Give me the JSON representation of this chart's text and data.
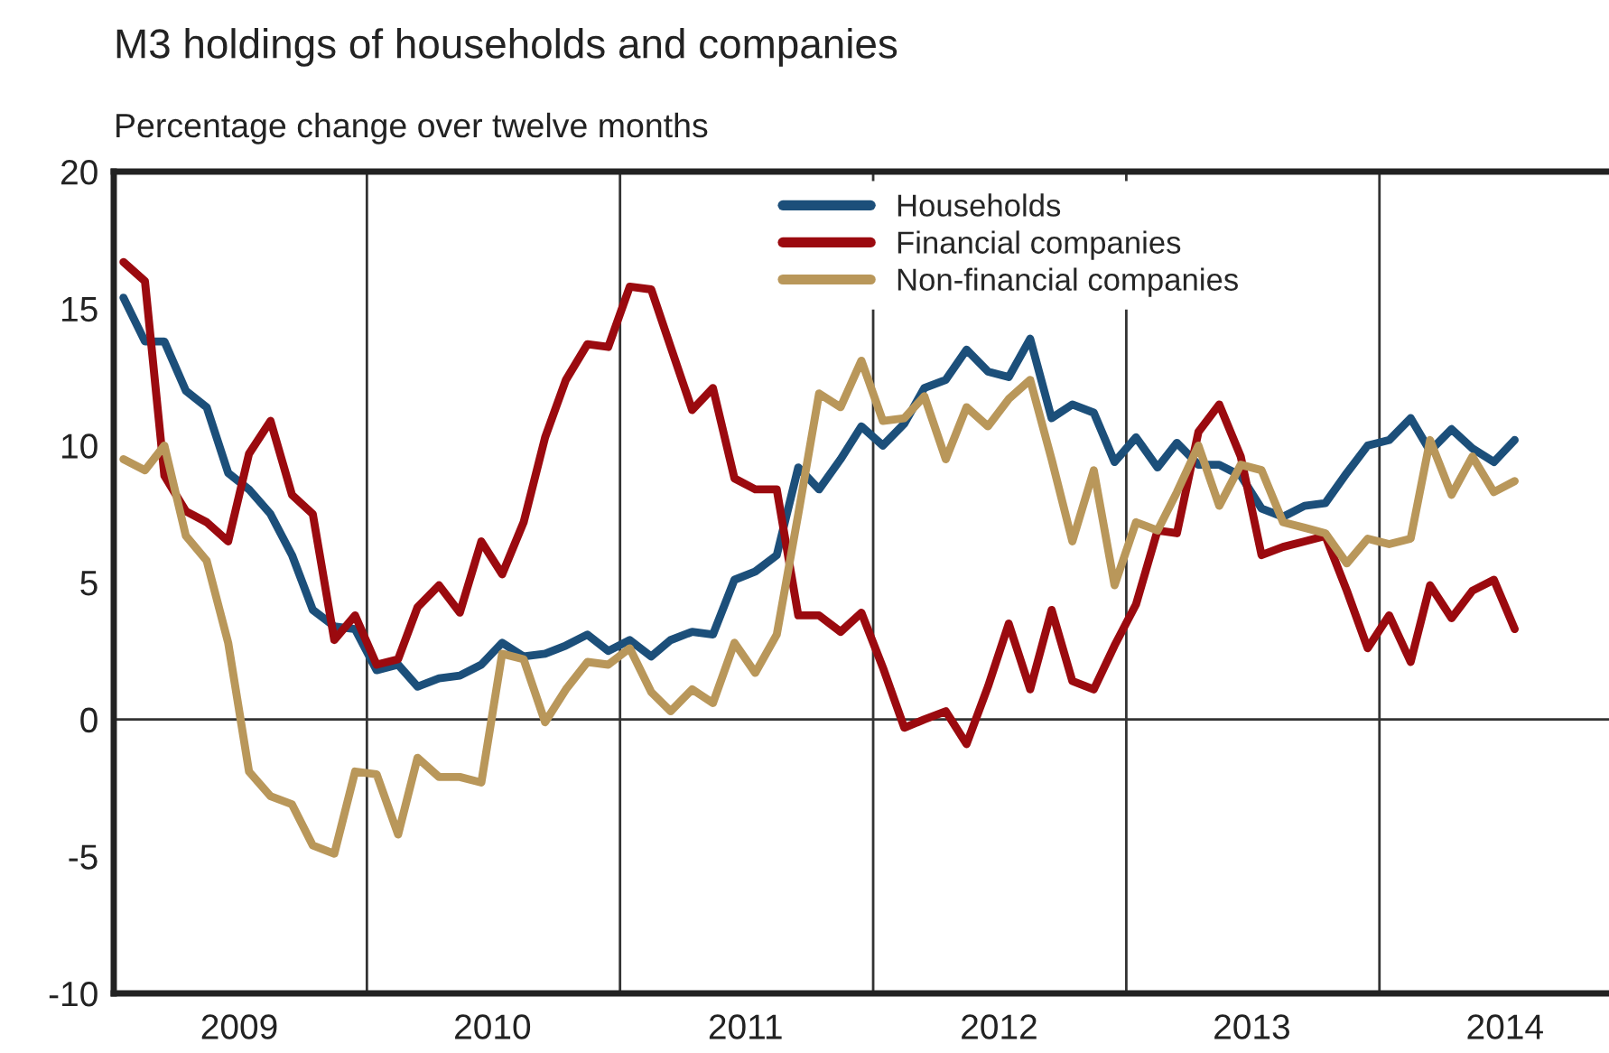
{
  "chart_data": {
    "type": "line",
    "title": "M3 holdings of households and companies",
    "ylabel": "Percentage change over twelve months",
    "x": [
      "2009-01-15",
      "2009-02-15",
      "2009-03-15",
      "2009-04-15",
      "2009-05-15",
      "2009-06-15",
      "2009-07-15",
      "2009-08-15",
      "2009-09-15",
      "2009-10-15",
      "2009-11-15",
      "2009-12-15",
      "2010-01-15",
      "2010-02-15",
      "2010-03-15",
      "2010-04-15",
      "2010-05-15",
      "2010-06-15",
      "2010-07-15",
      "2010-08-15",
      "2010-09-15",
      "2010-10-15",
      "2010-11-15",
      "2010-12-15",
      "2011-01-15",
      "2011-02-15",
      "2011-03-15",
      "2011-04-15",
      "2011-05-15",
      "2011-06-15",
      "2011-07-15",
      "2011-08-15",
      "2011-09-15",
      "2011-10-15",
      "2011-11-15",
      "2011-12-15",
      "2012-01-15",
      "2012-02-15",
      "2012-03-15",
      "2012-04-15",
      "2012-05-15",
      "2012-06-15",
      "2012-07-15",
      "2012-08-15",
      "2012-09-15",
      "2012-10-15",
      "2012-11-15",
      "2012-12-15",
      "2013-01-15",
      "2013-02-15",
      "2013-03-15",
      "2013-04-15",
      "2013-05-15",
      "2013-06-15",
      "2013-07-15",
      "2013-08-15",
      "2013-09-15",
      "2013-10-15",
      "2013-11-15",
      "2013-12-15",
      "2014-01-15",
      "2014-02-15",
      "2014-03-15",
      "2014-04-15",
      "2014-05-15",
      "2014-06-15",
      "2014-07-15"
    ],
    "series": [
      {
        "name": "Households",
        "color": "#1c4f7a",
        "values": [
          15.4,
          13.8,
          13.8,
          12.0,
          11.4,
          9.0,
          8.4,
          7.5,
          6.0,
          4.0,
          3.4,
          3.3,
          1.8,
          2.0,
          1.2,
          1.5,
          1.6,
          2.0,
          2.8,
          2.3,
          2.4,
          2.7,
          3.1,
          2.5,
          2.9,
          2.3,
          2.9,
          3.2,
          3.1,
          5.1,
          5.4,
          6.0,
          9.2,
          8.4,
          9.5,
          10.7,
          10.0,
          10.8,
          12.1,
          12.4,
          13.5,
          12.7,
          12.5,
          13.9,
          11.0,
          11.5,
          11.2,
          9.4,
          10.3,
          9.2,
          10.1,
          9.3,
          9.3,
          8.9,
          7.7,
          7.4,
          7.8,
          7.9,
          9.0,
          10.0,
          10.2,
          11.0,
          9.8,
          10.6,
          9.9,
          9.4,
          10.2
        ]
      },
      {
        "name": "Financial companies",
        "color": "#9b0a0f",
        "values": [
          16.7,
          16.0,
          8.9,
          7.6,
          7.2,
          6.5,
          9.7,
          10.9,
          8.2,
          7.5,
          2.9,
          3.8,
          2.0,
          2.2,
          4.1,
          4.9,
          3.9,
          6.5,
          5.3,
          7.2,
          10.3,
          12.4,
          13.7,
          13.6,
          15.8,
          15.7,
          13.6,
          11.3,
          12.1,
          8.8,
          8.4,
          8.4,
          3.8,
          3.8,
          3.2,
          3.9,
          1.9,
          -0.3,
          0.0,
          0.3,
          -0.9,
          1.2,
          3.5,
          1.1,
          4.0,
          1.4,
          1.1,
          2.7,
          4.2,
          6.9,
          6.8,
          10.5,
          11.5,
          9.6,
          6.0,
          6.3,
          6.5,
          6.7,
          4.7,
          2.6,
          3.8,
          2.1,
          4.9,
          3.7,
          4.7,
          5.1,
          3.3
        ]
      },
      {
        "name": "Non-financial companies",
        "color": "#b9975a",
        "values": [
          9.5,
          9.1,
          10.0,
          6.7,
          5.8,
          2.8,
          -1.9,
          -2.8,
          -3.1,
          -4.6,
          -4.9,
          -1.9,
          -2.0,
          -4.2,
          -1.4,
          -2.1,
          -2.1,
          -2.3,
          2.4,
          2.2,
          -0.1,
          1.1,
          2.1,
          2.0,
          2.6,
          1.0,
          0.3,
          1.1,
          0.6,
          2.8,
          1.7,
          3.1,
          7.5,
          11.9,
          11.4,
          13.1,
          10.9,
          11.0,
          11.8,
          9.5,
          11.4,
          10.7,
          11.7,
          12.4,
          9.5,
          6.5,
          9.1,
          4.9,
          7.2,
          6.9,
          8.3,
          10.0,
          7.8,
          9.3,
          9.1,
          7.2,
          7.0,
          6.8,
          5.7,
          6.6,
          6.4,
          6.6,
          10.2,
          8.2,
          9.6,
          8.3,
          8.7
        ]
      }
    ],
    "xlim": [
      "2009-01-01",
      "2014-11-28"
    ],
    "xticks": [
      {
        "value": "2009-07-01",
        "label": "2009"
      },
      {
        "value": "2010-07-01",
        "label": "2010"
      },
      {
        "value": "2011-07-01",
        "label": "2011"
      },
      {
        "value": "2012-07-01",
        "label": "2012"
      },
      {
        "value": "2013-07-01",
        "label": "2013"
      },
      {
        "value": "2014-07-01",
        "label": "2014"
      }
    ],
    "ylim": [
      -10,
      20
    ],
    "yticks": [
      -10,
      -5,
      0,
      5,
      10,
      15,
      20
    ],
    "ref_lines": [
      {
        "axis": "x",
        "value": "2010-01-01",
        "color": "#333333"
      },
      {
        "axis": "x",
        "value": "2011-01-01",
        "color": "#333333"
      },
      {
        "axis": "x",
        "value": "2012-01-01",
        "color": "#333333"
      },
      {
        "axis": "x",
        "value": "2013-01-01",
        "color": "#333333"
      },
      {
        "axis": "x",
        "value": "2014-01-01",
        "color": "#333333"
      },
      {
        "axis": "y",
        "value": 0,
        "color": "#333333"
      }
    ],
    "grid": false,
    "legend": "top",
    "marker": "none",
    "line_style": "solid"
  }
}
